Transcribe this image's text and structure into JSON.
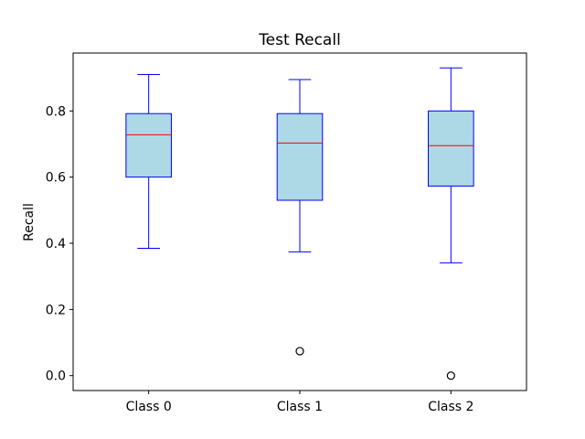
{
  "chart_data": {
    "type": "boxplot",
    "title": "Test Recall",
    "xlabel": "",
    "ylabel": "Recall",
    "categories": [
      "Class 0",
      "Class 1",
      "Class 2"
    ],
    "ylim": [
      -0.045,
      0.975
    ],
    "yticks": [
      0.0,
      0.2,
      0.4,
      0.6,
      0.8
    ],
    "ytick_labels": [
      "0.0",
      "0.2",
      "0.4",
      "0.6",
      "0.8"
    ],
    "grid": false,
    "colors": {
      "box_fill": "#add8e6",
      "box_edge": "#0000ff",
      "median": "#ff0000",
      "flier": "#000000"
    },
    "boxes": [
      {
        "category": "Class 0",
        "whisker_low": 0.385,
        "q1": 0.6,
        "median": 0.728,
        "q3": 0.792,
        "whisker_high": 0.91,
        "outliers": []
      },
      {
        "category": "Class 1",
        "whisker_low": 0.374,
        "q1": 0.53,
        "median": 0.703,
        "q3": 0.792,
        "whisker_high": 0.895,
        "outliers": [
          0.074
        ]
      },
      {
        "category": "Class 2",
        "whisker_low": 0.341,
        "q1": 0.573,
        "median": 0.695,
        "q3": 0.8,
        "whisker_high": 0.93,
        "outliers": [
          0.0
        ]
      }
    ]
  }
}
